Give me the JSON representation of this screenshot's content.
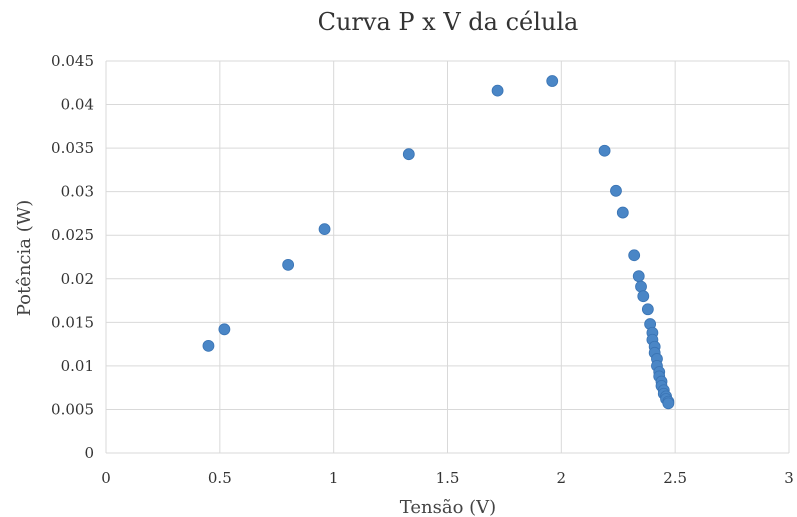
{
  "chart_data": {
    "type": "scatter",
    "title": "Curva P x V da célula",
    "xlabel": "Tensão (V)",
    "ylabel": "Potência (W)",
    "xlim": [
      0,
      3
    ],
    "ylim": [
      0,
      0.045
    ],
    "x_ticks": [
      "0",
      "0.5",
      "1",
      "1.5",
      "2",
      "2.5",
      "3"
    ],
    "y_ticks": [
      "0",
      "0.005",
      "0.01",
      "0.015",
      "0.02",
      "0.025",
      "0.03",
      "0.035",
      "0.04",
      "0.045"
    ],
    "grid": true,
    "marker_color": "#4a86c6",
    "series": [
      {
        "x": [
          0.45,
          0.52,
          0.8,
          0.96,
          1.33,
          1.72,
          1.96,
          2.19,
          2.24,
          2.27,
          2.32,
          2.34,
          2.35,
          2.36,
          2.38,
          2.39,
          2.4,
          2.4,
          2.41,
          2.41,
          2.42,
          2.42,
          2.43,
          2.43,
          2.44,
          2.44,
          2.45,
          2.45,
          2.46,
          2.46,
          2.47,
          2.47
        ],
        "y": [
          0.0123,
          0.0142,
          0.0216,
          0.0257,
          0.0343,
          0.0416,
          0.0427,
          0.0347,
          0.0301,
          0.0276,
          0.0227,
          0.0203,
          0.0191,
          0.018,
          0.0165,
          0.0148,
          0.0138,
          0.013,
          0.0122,
          0.0115,
          0.0108,
          0.01,
          0.0093,
          0.0088,
          0.0082,
          0.0077,
          0.0072,
          0.0068,
          0.0065,
          0.0062,
          0.0059,
          0.0057
        ]
      }
    ]
  }
}
